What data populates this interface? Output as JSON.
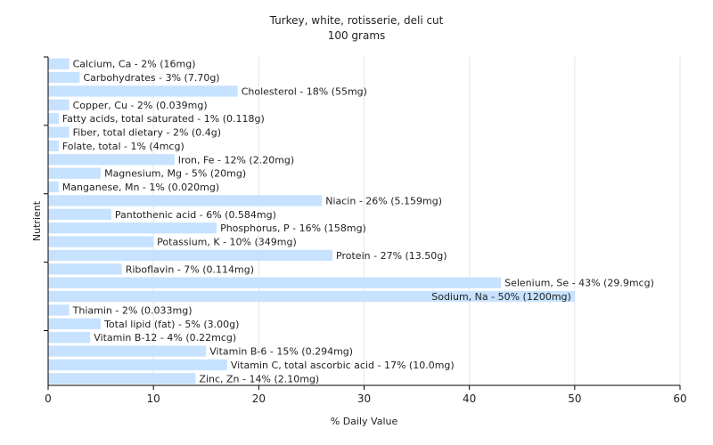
{
  "chart_data": {
    "type": "bar",
    "orientation": "horizontal",
    "title": "Turkey, white, rotisserie, deli cut",
    "subtitle": "100 grams",
    "xlabel": "% Daily Value",
    "ylabel": "Nutrient",
    "xlim": [
      0,
      60
    ],
    "xticks": [
      0,
      10,
      20,
      30,
      40,
      50,
      60
    ],
    "grid": true,
    "legend": "none",
    "bar_color": "#c6e2ff",
    "categories": [
      "Calcium, Ca",
      "Carbohydrates",
      "Cholesterol",
      "Copper, Cu",
      "Fatty acids, total saturated",
      "Fiber, total dietary",
      "Folate, total",
      "Iron, Fe",
      "Magnesium, Mg",
      "Manganese, Mn",
      "Niacin",
      "Pantothenic acid",
      "Phosphorus, P",
      "Potassium, K",
      "Protein",
      "Riboflavin",
      "Selenium, Se",
      "Sodium, Na",
      "Thiamin",
      "Total lipid (fat)",
      "Vitamin B-12",
      "Vitamin B-6",
      "Vitamin C, total ascorbic acid",
      "Zinc, Zn"
    ],
    "values": [
      2,
      3,
      18,
      2,
      1,
      2,
      1,
      12,
      5,
      1,
      26,
      6,
      16,
      10,
      27,
      7,
      43,
      50,
      2,
      5,
      4,
      15,
      17,
      14
    ],
    "data_labels": [
      "Calcium, Ca - 2% (16mg)",
      "Carbohydrates - 3% (7.70g)",
      "Cholesterol - 18% (55mg)",
      "Copper, Cu - 2% (0.039mg)",
      "Fatty acids, total saturated - 1% (0.118g)",
      "Fiber, total dietary - 2% (0.4g)",
      "Folate, total - 1% (4mcg)",
      "Iron, Fe - 12% (2.20mg)",
      "Magnesium, Mg - 5% (20mg)",
      "Manganese, Mn - 1% (0.020mg)",
      "Niacin - 26% (5.159mg)",
      "Pantothenic acid - 6% (0.584mg)",
      "Phosphorus, P - 16% (158mg)",
      "Potassium, K - 10% (349mg)",
      "Protein - 27% (13.50g)",
      "Riboflavin - 7% (0.114mg)",
      "Selenium, Se - 43% (29.9mcg)",
      "Sodium, Na - 50% (1200mg)",
      "Thiamin - 2% (0.033mg)",
      "Total lipid (fat) - 5% (3.00g)",
      "Vitamin B-12 - 4% (0.22mcg)",
      "Vitamin B-6 - 15% (0.294mg)",
      "Vitamin C, total ascorbic acid - 17% (10.0mg)",
      "Zinc, Zn - 14% (2.10mg)"
    ]
  }
}
